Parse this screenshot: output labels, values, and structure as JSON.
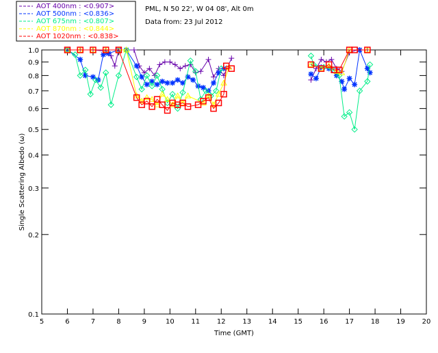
{
  "header": {
    "site": "PML, N 50 22', W 04 08', Alt 0m",
    "date": "Data from: 23 Jul 2012"
  },
  "chart_data": {
    "type": "scatter",
    "title": "",
    "xlabel": "Time (GMT)",
    "ylabel": "Single Scattering Albedo (ω)",
    "xlim": [
      5,
      20
    ],
    "ylim": [
      0.1,
      1.0
    ],
    "yscale": "log",
    "xticks": [
      "5",
      "6",
      "7",
      "8",
      "9",
      "10",
      "11",
      "12",
      "13",
      "14",
      "15",
      "16",
      "17",
      "18",
      "19",
      "20"
    ],
    "yticks": [
      "1.0",
      "0.9",
      "0.8",
      "0.7",
      "0.6",
      "0.5",
      "0.4",
      "0.3",
      "0.2",
      "0.1"
    ],
    "legend_position": "top-left",
    "series": [
      {
        "name": "AOT  400nm : <0.907>",
        "color": "#6600aa",
        "marker": "plus",
        "points": [
          [
            6.0,
            1.0
          ],
          [
            6.5,
            1.0
          ],
          [
            7.0,
            1.0
          ],
          [
            7.5,
            0.99
          ],
          [
            7.7,
            0.95
          ],
          [
            7.85,
            0.87
          ],
          [
            8.0,
            1.0
          ],
          [
            8.3,
            1.0
          ],
          [
            8.6,
            1.0
          ],
          [
            8.8,
            0.87
          ],
          [
            9.0,
            0.82
          ],
          [
            9.2,
            0.85
          ],
          [
            9.4,
            0.8
          ],
          [
            9.6,
            0.88
          ],
          [
            9.8,
            0.9
          ],
          [
            10.0,
            0.9
          ],
          [
            10.2,
            0.88
          ],
          [
            10.4,
            0.85
          ],
          [
            10.6,
            0.87
          ],
          [
            10.8,
            0.88
          ],
          [
            11.0,
            0.82
          ],
          [
            11.2,
            0.83
          ],
          [
            11.5,
            0.92
          ],
          [
            11.7,
            0.79
          ],
          [
            11.9,
            0.85
          ],
          [
            12.1,
            0.8
          ],
          [
            12.4,
            0.93
          ],
          [
            15.5,
            0.77
          ],
          [
            15.7,
            0.85
          ],
          [
            15.9,
            0.92
          ],
          [
            16.1,
            0.9
          ],
          [
            16.3,
            0.92
          ],
          [
            16.5,
            0.85
          ],
          [
            16.7,
            0.83
          ],
          [
            17.0,
            0.98
          ],
          [
            17.3,
            1.0
          ],
          [
            17.7,
            1.0
          ]
        ]
      },
      {
        "name": "AOT  500nm : <0.836>",
        "color": "#0033ff",
        "marker": "star",
        "points": [
          [
            6.0,
            1.0
          ],
          [
            6.5,
            0.92
          ],
          [
            6.7,
            0.8
          ],
          [
            7.0,
            0.79
          ],
          [
            7.2,
            0.77
          ],
          [
            7.4,
            0.96
          ],
          [
            7.6,
            0.97
          ],
          [
            8.0,
            1.0
          ],
          [
            8.3,
            1.0
          ],
          [
            8.7,
            0.87
          ],
          [
            8.9,
            0.79
          ],
          [
            9.1,
            0.74
          ],
          [
            9.3,
            0.76
          ],
          [
            9.5,
            0.74
          ],
          [
            9.7,
            0.76
          ],
          [
            9.9,
            0.75
          ],
          [
            10.1,
            0.75
          ],
          [
            10.3,
            0.77
          ],
          [
            10.5,
            0.75
          ],
          [
            10.7,
            0.79
          ],
          [
            10.9,
            0.77
          ],
          [
            11.1,
            0.73
          ],
          [
            11.3,
            0.72
          ],
          [
            11.5,
            0.7
          ],
          [
            11.7,
            0.75
          ],
          [
            11.9,
            0.82
          ],
          [
            12.1,
            0.85
          ],
          [
            15.5,
            0.81
          ],
          [
            15.7,
            0.78
          ],
          [
            15.9,
            0.86
          ],
          [
            16.2,
            0.85
          ],
          [
            16.5,
            0.8
          ],
          [
            16.7,
            0.76
          ],
          [
            16.8,
            0.71
          ],
          [
            17.0,
            0.78
          ],
          [
            17.2,
            0.74
          ],
          [
            17.4,
            1.0
          ],
          [
            17.7,
            0.85
          ],
          [
            17.8,
            0.82
          ]
        ]
      },
      {
        "name": "AOT  675nm : <0.807>",
        "color": "#00ee88",
        "marker": "diamond",
        "points": [
          [
            6.0,
            1.0
          ],
          [
            6.3,
            0.96
          ],
          [
            6.5,
            0.8
          ],
          [
            6.7,
            0.84
          ],
          [
            6.9,
            0.68
          ],
          [
            7.1,
            0.77
          ],
          [
            7.3,
            0.72
          ],
          [
            7.5,
            0.82
          ],
          [
            7.7,
            0.62
          ],
          [
            8.0,
            0.8
          ],
          [
            8.3,
            1.0
          ],
          [
            8.7,
            0.79
          ],
          [
            8.9,
            0.71
          ],
          [
            9.1,
            0.8
          ],
          [
            9.3,
            0.73
          ],
          [
            9.5,
            0.8
          ],
          [
            9.7,
            0.71
          ],
          [
            9.9,
            0.63
          ],
          [
            10.1,
            0.68
          ],
          [
            10.3,
            0.6
          ],
          [
            10.5,
            0.69
          ],
          [
            10.8,
            0.91
          ],
          [
            11.0,
            0.83
          ],
          [
            11.2,
            0.65
          ],
          [
            11.4,
            0.7
          ],
          [
            11.6,
            0.67
          ],
          [
            11.8,
            0.7
          ],
          [
            12.0,
            0.85
          ],
          [
            15.5,
            0.95
          ],
          [
            15.6,
            0.88
          ],
          [
            16.0,
            0.86
          ],
          [
            16.3,
            0.85
          ],
          [
            16.6,
            0.8
          ],
          [
            16.8,
            0.56
          ],
          [
            17.0,
            0.58
          ],
          [
            17.2,
            0.5
          ],
          [
            17.4,
            0.7
          ],
          [
            17.7,
            0.76
          ],
          [
            17.8,
            0.88
          ]
        ]
      },
      {
        "name": "AOT  870nm : <0.844>",
        "color": "#ffff00",
        "marker": "triangle",
        "points": [
          [
            6.0,
            1.0
          ],
          [
            6.5,
            1.0
          ],
          [
            7.0,
            1.0
          ],
          [
            7.5,
            1.0
          ],
          [
            8.0,
            1.0
          ],
          [
            8.3,
            1.0
          ],
          [
            8.7,
            0.67
          ],
          [
            8.9,
            0.64
          ],
          [
            9.1,
            0.66
          ],
          [
            9.3,
            0.65
          ],
          [
            9.5,
            0.62
          ],
          [
            9.7,
            0.68
          ],
          [
            9.9,
            0.65
          ],
          [
            10.1,
            0.62
          ],
          [
            10.3,
            0.67
          ],
          [
            10.5,
            0.63
          ],
          [
            10.7,
            0.67
          ],
          [
            11.3,
            0.63
          ],
          [
            11.5,
            0.67
          ],
          [
            11.7,
            0.62
          ],
          [
            11.9,
            0.68
          ],
          [
            12.1,
            0.75
          ],
          [
            12.3,
            0.86
          ],
          [
            15.5,
            0.88
          ],
          [
            15.9,
            0.85
          ],
          [
            16.2,
            0.87
          ],
          [
            16.5,
            0.83
          ],
          [
            16.7,
            0.82
          ],
          [
            17.0,
            1.0
          ],
          [
            17.7,
            1.0
          ]
        ]
      },
      {
        "name": "AOT 1020nm : <0.838>",
        "color": "#ff0000",
        "marker": "square",
        "points": [
          [
            6.0,
            1.0
          ],
          [
            6.5,
            1.0
          ],
          [
            7.0,
            1.0
          ],
          [
            7.5,
            1.0
          ],
          [
            8.0,
            1.0
          ],
          [
            8.7,
            0.66
          ],
          [
            8.9,
            0.62
          ],
          [
            9.1,
            0.64
          ],
          [
            9.3,
            0.61
          ],
          [
            9.5,
            0.65
          ],
          [
            9.7,
            0.62
          ],
          [
            9.9,
            0.59
          ],
          [
            10.1,
            0.63
          ],
          [
            10.3,
            0.62
          ],
          [
            10.5,
            0.63
          ],
          [
            10.7,
            0.61
          ],
          [
            11.1,
            0.62
          ],
          [
            11.3,
            0.64
          ],
          [
            11.5,
            0.66
          ],
          [
            11.7,
            0.6
          ],
          [
            11.9,
            0.63
          ],
          [
            12.1,
            0.68
          ],
          [
            12.2,
            0.87
          ],
          [
            12.4,
            0.85
          ],
          [
            15.5,
            0.88
          ],
          [
            15.9,
            0.85
          ],
          [
            16.2,
            0.88
          ],
          [
            16.4,
            0.84
          ],
          [
            16.6,
            0.84
          ],
          [
            17.0,
            1.0
          ],
          [
            17.2,
            1.0
          ],
          [
            17.7,
            1.0
          ]
        ]
      }
    ]
  }
}
